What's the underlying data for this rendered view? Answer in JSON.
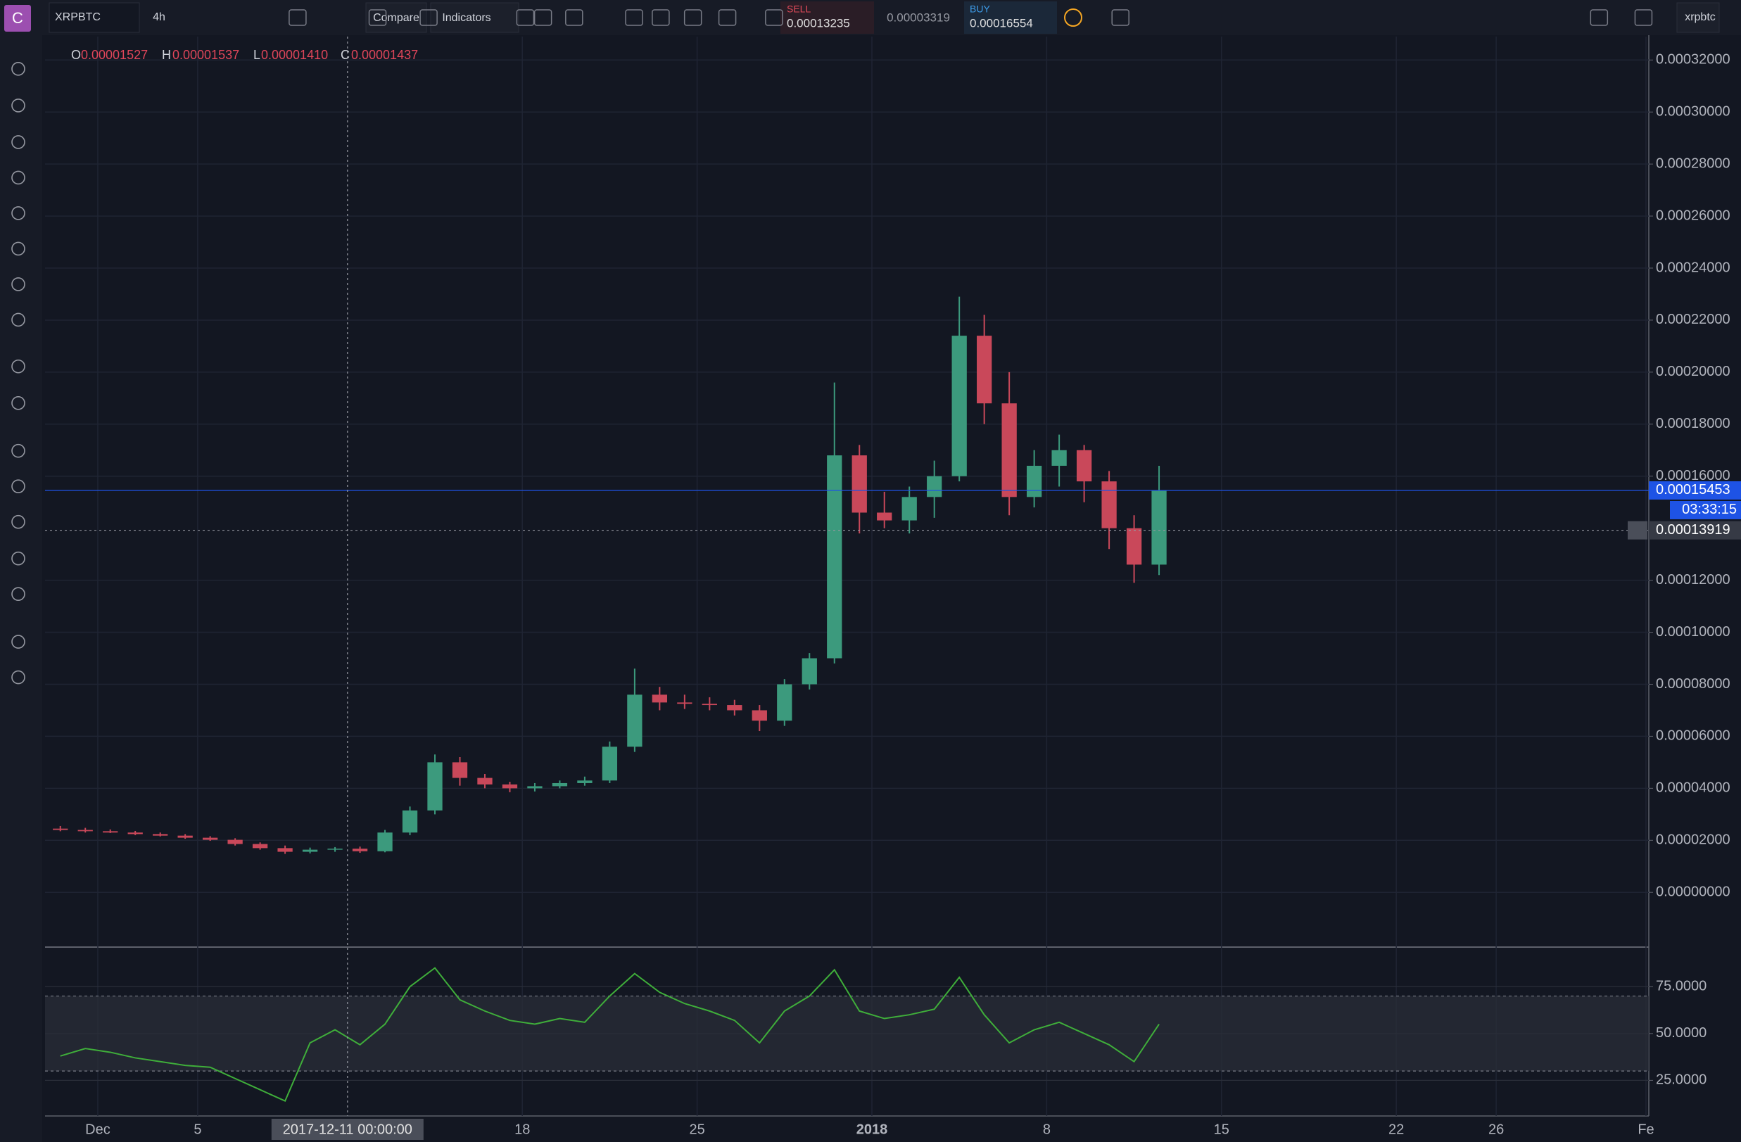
{
  "toolbar": {
    "logo": "C",
    "symbol": "XRPBTC",
    "interval": "4h",
    "compare": "Compare",
    "indicators": "Indicators",
    "sell_label": "SELL",
    "sell_price": "0.00013235",
    "spread": "0.00003319",
    "buy_label": "BUY",
    "buy_price": "0.00016554",
    "account": "xrpbtc"
  },
  "legend": {
    "open_label": "O",
    "open": "0.00001527",
    "high_label": "H",
    "high": "0.00001537",
    "low_label": "L",
    "low": "0.00001410",
    "close_label": "C",
    "close": "0.00001437"
  },
  "chart_data": [
    {
      "type": "candlestick",
      "x": [
        "2017-11-29",
        "2017-11-30",
        "2017-12-01",
        "2017-12-02",
        "2017-12-03",
        "2017-12-04",
        "2017-12-05",
        "2017-12-06",
        "2017-12-07",
        "2017-12-08",
        "2017-12-09",
        "2017-12-10",
        "2017-12-11",
        "2017-12-12",
        "2017-12-13",
        "2017-12-14",
        "2017-12-15",
        "2017-12-16",
        "2017-12-17",
        "2017-12-18",
        "2017-12-19",
        "2017-12-20",
        "2017-12-21",
        "2017-12-22",
        "2017-12-23",
        "2017-12-24",
        "2017-12-25",
        "2017-12-26",
        "2017-12-27",
        "2017-12-28",
        "2017-12-29",
        "2017-12-30",
        "2017-12-31",
        "2018-01-01",
        "2018-01-02",
        "2018-01-03",
        "2018-01-04",
        "2018-01-05",
        "2018-01-06",
        "2018-01-07",
        "2018-01-08",
        "2018-01-09",
        "2018-01-10",
        "2018-01-11",
        "2018-01-12"
      ],
      "open": [
        2.45e-05,
        2.4e-05,
        2.35e-05,
        2.3e-05,
        2.24e-05,
        2.18e-05,
        2.1e-05,
        2.02e-05,
        1.86e-05,
        1.7e-05,
        1.56e-05,
        1.64e-05,
        1.68e-05,
        1.58e-05,
        2.3e-05,
        3.15e-05,
        5e-05,
        4.4e-05,
        4.15e-05,
        4e-05,
        4.08e-05,
        4.2e-05,
        4.3e-05,
        5.6e-05,
        7.6e-05,
        7.3e-05,
        7.25e-05,
        7.2e-05,
        7e-05,
        6.6e-05,
        8e-05,
        9e-05,
        0.000168,
        0.000146,
        0.000143,
        0.000152,
        0.00016,
        0.000214,
        0.000188,
        0.000152,
        0.000164,
        0.00017,
        0.000158,
        0.00014,
        0.000126
      ],
      "high": [
        2.55e-05,
        2.48e-05,
        2.42e-05,
        2.36e-05,
        2.3e-05,
        2.24e-05,
        2.16e-05,
        2.08e-05,
        1.92e-05,
        1.8e-05,
        1.72e-05,
        1.74e-05,
        1.76e-05,
        2.4e-05,
        3.3e-05,
        5.3e-05,
        5.2e-05,
        4.55e-05,
        4.25e-05,
        4.2e-05,
        4.3e-05,
        4.45e-05,
        5.8e-05,
        8.6e-05,
        7.9e-05,
        7.6e-05,
        7.5e-05,
        7.4e-05,
        7.2e-05,
        8.2e-05,
        9.2e-05,
        0.000196,
        0.000172,
        0.000154,
        0.000156,
        0.000166,
        0.000229,
        0.000222,
        0.0002,
        0.00017,
        0.000176,
        0.000172,
        0.000162,
        0.000145,
        0.000164
      ],
      "low": [
        2.35e-05,
        2.3e-05,
        2.28e-05,
        2.2e-05,
        2.15e-05,
        2.06e-05,
        1.98e-05,
        1.8e-05,
        1.64e-05,
        1.48e-05,
        1.5e-05,
        1.56e-05,
        1.52e-05,
        1.54e-05,
        2.2e-05,
        3e-05,
        4.1e-05,
        4e-05,
        3.85e-05,
        3.88e-05,
        4e-05,
        4.1e-05,
        4.2e-05,
        5.4e-05,
        7e-05,
        7.05e-05,
        7e-05,
        6.8e-05,
        6.2e-05,
        6.4e-05,
        7.8e-05,
        8.8e-05,
        0.000138,
        0.00014,
        0.000138,
        0.000144,
        0.000158,
        0.00018,
        0.000145,
        0.000148,
        0.000156,
        0.00015,
        0.000132,
        0.000119,
        0.000122
      ],
      "close": [
        2.4e-05,
        2.35e-05,
        2.3e-05,
        2.24e-05,
        2.18e-05,
        2.1e-05,
        2.02e-05,
        1.86e-05,
        1.7e-05,
        1.56e-05,
        1.64e-05,
        1.68e-05,
        1.58e-05,
        2.3e-05,
        3.15e-05,
        5e-05,
        4.4e-05,
        4.15e-05,
        4e-05,
        4.08e-05,
        4.2e-05,
        4.3e-05,
        5.6e-05,
        7.6e-05,
        7.3e-05,
        7.25e-05,
        7.2e-05,
        7e-05,
        6.6e-05,
        8e-05,
        9e-05,
        0.000168,
        0.000146,
        0.000143,
        0.000152,
        0.00016,
        0.000214,
        0.000188,
        0.000152,
        0.000164,
        0.00017,
        0.000158,
        0.00014,
        0.000126,
        0.00015453
      ],
      "up_color": "#3c9a7d",
      "down_color": "#c9485a",
      "xlim": [
        "2017-11-29",
        "2018-02-01"
      ],
      "xticks": [
        {
          "value": "2017-12-01",
          "label": "Dec"
        },
        {
          "value": "2017-12-05",
          "label": "5"
        },
        {
          "value": "2017-12-18",
          "label": "18"
        },
        {
          "value": "2017-12-25",
          "label": "25"
        },
        {
          "value": "2018-01-01",
          "label": "2018"
        },
        {
          "value": "2018-01-08",
          "label": "8"
        },
        {
          "value": "2018-01-15",
          "label": "15"
        },
        {
          "value": "2018-01-22",
          "label": "22"
        },
        {
          "value": "2018-01-26",
          "label": "26"
        },
        {
          "value": "2018-02-01",
          "label": "Fe"
        }
      ],
      "ylim": [
        -2.05e-05,
        0.000329
      ],
      "yticks": [
        {
          "value": 0,
          "label": "0.00000000"
        },
        {
          "value": 2e-05,
          "label": "0.00002000"
        },
        {
          "value": 4e-05,
          "label": "0.00004000"
        },
        {
          "value": 6e-05,
          "label": "0.00006000"
        },
        {
          "value": 8e-05,
          "label": "0.00008000"
        },
        {
          "value": 0.0001,
          "label": "0.00010000"
        },
        {
          "value": 0.00012,
          "label": "0.00012000"
        },
        {
          "value": 0.00016,
          "label": "0.00016000"
        },
        {
          "value": 0.00018,
          "label": "0.00018000"
        },
        {
          "value": 0.0002,
          "label": "0.00020000"
        },
        {
          "value": 0.00022,
          "label": "0.00022000"
        },
        {
          "value": 0.00024,
          "label": "0.00024000"
        },
        {
          "value": 0.00026,
          "label": "0.00026000"
        },
        {
          "value": 0.00028,
          "label": "0.00028000"
        },
        {
          "value": 0.0003,
          "label": "0.00030000"
        },
        {
          "value": 0.00032,
          "label": "0.00032000"
        }
      ],
      "grid": true,
      "last_price": 0.00015453,
      "countdown": "03:33:15",
      "crosshair": {
        "x": "2017-12-11",
        "x_label": "2017-12-11 00:00:00",
        "price": 0.00013919
      }
    },
    {
      "type": "line",
      "color": "#3fae3a",
      "x": [
        "2017-11-29",
        "2017-11-30",
        "2017-12-01",
        "2017-12-02",
        "2017-12-03",
        "2017-12-04",
        "2017-12-05",
        "2017-12-06",
        "2017-12-07",
        "2017-12-08",
        "2017-12-09",
        "2017-12-10",
        "2017-12-11",
        "2017-12-12",
        "2017-12-13",
        "2017-12-14",
        "2017-12-15",
        "2017-12-16",
        "2017-12-17",
        "2017-12-18",
        "2017-12-19",
        "2017-12-20",
        "2017-12-21",
        "2017-12-22",
        "2017-12-23",
        "2017-12-24",
        "2017-12-25",
        "2017-12-26",
        "2017-12-27",
        "2017-12-28",
        "2017-12-29",
        "2017-12-30",
        "2017-12-31",
        "2018-01-01",
        "2018-01-02",
        "2018-01-03",
        "2018-01-04",
        "2018-01-05",
        "2018-01-06",
        "2018-01-07",
        "2018-01-08",
        "2018-01-09",
        "2018-01-10",
        "2018-01-11",
        "2018-01-12"
      ],
      "values": [
        38,
        42,
        40,
        37,
        35,
        33,
        32,
        26,
        20,
        14,
        45,
        52,
        44,
        55,
        75,
        85,
        68,
        62,
        57,
        55,
        58,
        56,
        70,
        82,
        72,
        66,
        62,
        57,
        45,
        62,
        70,
        84,
        62,
        58,
        60,
        63,
        80,
        60,
        45,
        52,
        56,
        50,
        44,
        35,
        55
      ],
      "xlim": [
        "2017-11-29",
        "2018-02-01"
      ],
      "ylim": [
        6,
        95
      ],
      "yticks": [
        {
          "value": 25,
          "label": "25.0000"
        },
        {
          "value": 50,
          "label": "50.0000"
        },
        {
          "value": 75,
          "label": "75.0000"
        }
      ],
      "band": [
        30,
        70
      ],
      "grid": true
    }
  ]
}
